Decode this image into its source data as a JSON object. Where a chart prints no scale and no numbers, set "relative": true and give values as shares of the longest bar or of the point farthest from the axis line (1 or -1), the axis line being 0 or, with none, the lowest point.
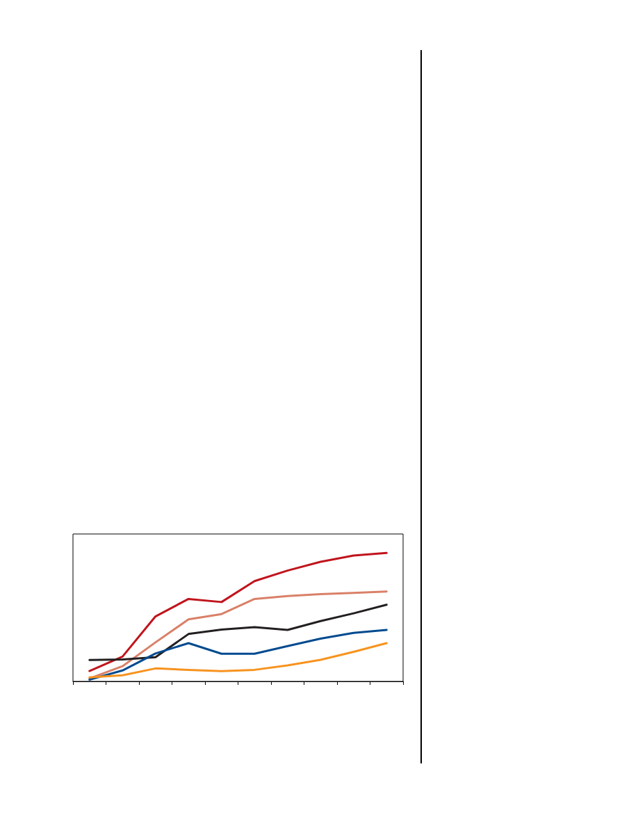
{
  "chart_data": {
    "type": "line",
    "relative": true,
    "marker": "none",
    "line_style": "solid",
    "categories": [
      null,
      null,
      null,
      null,
      null,
      null,
      null,
      null,
      null,
      null
    ],
    "series": [
      {
        "color": "#c0141c",
        "values": [
          0.081,
          0.193,
          0.506,
          0.642,
          0.618,
          0.781,
          0.863,
          0.931,
          0.98,
          1
        ]
      },
      {
        "color": "#d98068",
        "values": [
          0.022,
          0.118,
          0.304,
          0.483,
          0.524,
          0.642,
          0.665,
          0.68,
          0.689,
          0.7
        ]
      },
      {
        "color": "#231f20",
        "values": [
          0.166,
          0.17,
          0.188,
          0.369,
          0.403,
          0.423,
          0.401,
          0.47,
          0.53,
          0.597
        ]
      },
      {
        "color": "#004a8f",
        "values": [
          0.013,
          0.085,
          0.217,
          0.298,
          0.215,
          0.215,
          0.275,
          0.333,
          0.378,
          0.401
        ]
      },
      {
        "color": "#f7931e",
        "values": [
          0.031,
          0.047,
          0.101,
          0.09,
          0.08,
          0.09,
          0.125,
          0.168,
          0.23,
          0.298
        ]
      }
    ]
  }
}
